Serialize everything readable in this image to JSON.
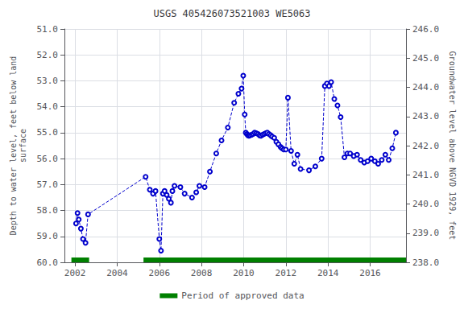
{
  "chart_data": {
    "type": "line",
    "title": "USGS 405426073521003 WE5063",
    "ylabel": "Depth to water level, feet below land\nsurface",
    "y2label": "Groundwater level above NGVD 1929, feet",
    "xlim": [
      2001.5,
      2017.7
    ],
    "xticks": [
      2002,
      2004,
      2006,
      2008,
      2010,
      2012,
      2014,
      2016
    ],
    "ylim": [
      60.0,
      51.0
    ],
    "yticks": [
      {
        "value": 51.0,
        "label": "51.0"
      },
      {
        "value": 52.0,
        "label": "52.0"
      },
      {
        "value": 53.0,
        "label": "53.0"
      },
      {
        "value": 54.0,
        "label": "54.0"
      },
      {
        "value": 55.0,
        "label": "55.0"
      },
      {
        "value": 56.0,
        "label": "56.0"
      },
      {
        "value": 57.0,
        "label": "57.0"
      },
      {
        "value": 58.0,
        "label": "58.0"
      },
      {
        "value": 59.0,
        "label": "59.0"
      },
      {
        "value": 60.0,
        "label": "60.0"
      }
    ],
    "y2lim": [
      238.0,
      246.0
    ],
    "y2ticks": [
      {
        "value": 238.0,
        "label": "238.0"
      },
      {
        "value": 239.0,
        "label": "239.0"
      },
      {
        "value": 240.0,
        "label": "240.0"
      },
      {
        "value": 241.0,
        "label": "241.0"
      },
      {
        "value": 242.0,
        "label": "242.0"
      },
      {
        "value": 243.0,
        "label": "243.0"
      },
      {
        "value": 244.0,
        "label": "244.0"
      },
      {
        "value": 245.0,
        "label": "245.0"
      },
      {
        "value": 246.0,
        "label": "246.0"
      }
    ],
    "grid": true,
    "legend": "bottom",
    "color": "#0000cc",
    "marker": "circle",
    "line_style": "dashed",
    "x": [
      2002.05,
      2002.12,
      2002.18,
      2002.28,
      2002.38,
      2002.5,
      2002.62,
      2005.35,
      2005.55,
      2005.7,
      2005.82,
      2006.0,
      2006.08,
      2006.17,
      2006.25,
      2006.35,
      2006.45,
      2006.55,
      2006.62,
      2006.72,
      2007.0,
      2007.2,
      2007.55,
      2007.75,
      2007.9,
      2008.15,
      2008.4,
      2008.7,
      2008.95,
      2009.25,
      2009.55,
      2009.75,
      2009.9,
      2009.98,
      2010.05,
      2010.1,
      2010.15,
      2010.2,
      2010.25,
      2010.3,
      2010.38,
      2010.45,
      2010.52,
      2010.6,
      2010.68,
      2010.75,
      2010.82,
      2010.9,
      2010.97,
      2011.05,
      2011.12,
      2011.2,
      2011.28,
      2011.35,
      2011.45,
      2011.55,
      2011.65,
      2011.75,
      2011.82,
      2011.9,
      2012.0,
      2012.1,
      2012.25,
      2012.4,
      2012.55,
      2012.7,
      2013.1,
      2013.4,
      2013.7,
      2013.85,
      2013.95,
      2014.05,
      2014.15,
      2014.3,
      2014.45,
      2014.6,
      2014.78,
      2014.92,
      2015.05,
      2015.22,
      2015.38,
      2015.55,
      2015.72,
      2015.88,
      2016.05,
      2016.22,
      2016.38,
      2016.55,
      2016.72,
      2016.88,
      2017.05,
      2017.22
    ],
    "values": [
      58.5,
      58.1,
      58.35,
      58.7,
      59.1,
      59.25,
      58.15,
      56.7,
      57.2,
      57.35,
      57.25,
      59.1,
      59.55,
      57.35,
      57.25,
      57.4,
      57.55,
      57.7,
      57.25,
      57.05,
      57.1,
      57.35,
      57.5,
      57.3,
      57.05,
      57.1,
      56.5,
      55.8,
      55.3,
      54.8,
      53.85,
      53.5,
      53.3,
      52.8,
      54.3,
      55.0,
      55.05,
      55.1,
      55.12,
      55.1,
      55.08,
      55.05,
      55.0,
      55.02,
      55.05,
      55.1,
      55.12,
      55.08,
      55.05,
      55.02,
      55.0,
      55.05,
      55.1,
      55.15,
      55.2,
      55.35,
      55.45,
      55.55,
      55.6,
      55.65,
      55.65,
      53.65,
      55.7,
      56.2,
      55.85,
      56.4,
      56.45,
      56.3,
      56.0,
      53.2,
      53.1,
      53.2,
      53.05,
      53.7,
      53.95,
      54.4,
      55.95,
      55.8,
      55.8,
      55.9,
      55.85,
      56.05,
      56.15,
      56.1,
      56.0,
      56.1,
      56.2,
      56.05,
      55.85,
      56.05,
      55.6,
      55.0
    ],
    "approved_periods": {
      "name": "Period of approved data",
      "color": "#008000",
      "ranges": [
        [
          2001.83,
          2002.67
        ],
        [
          2005.25,
          2017.7
        ]
      ]
    }
  }
}
